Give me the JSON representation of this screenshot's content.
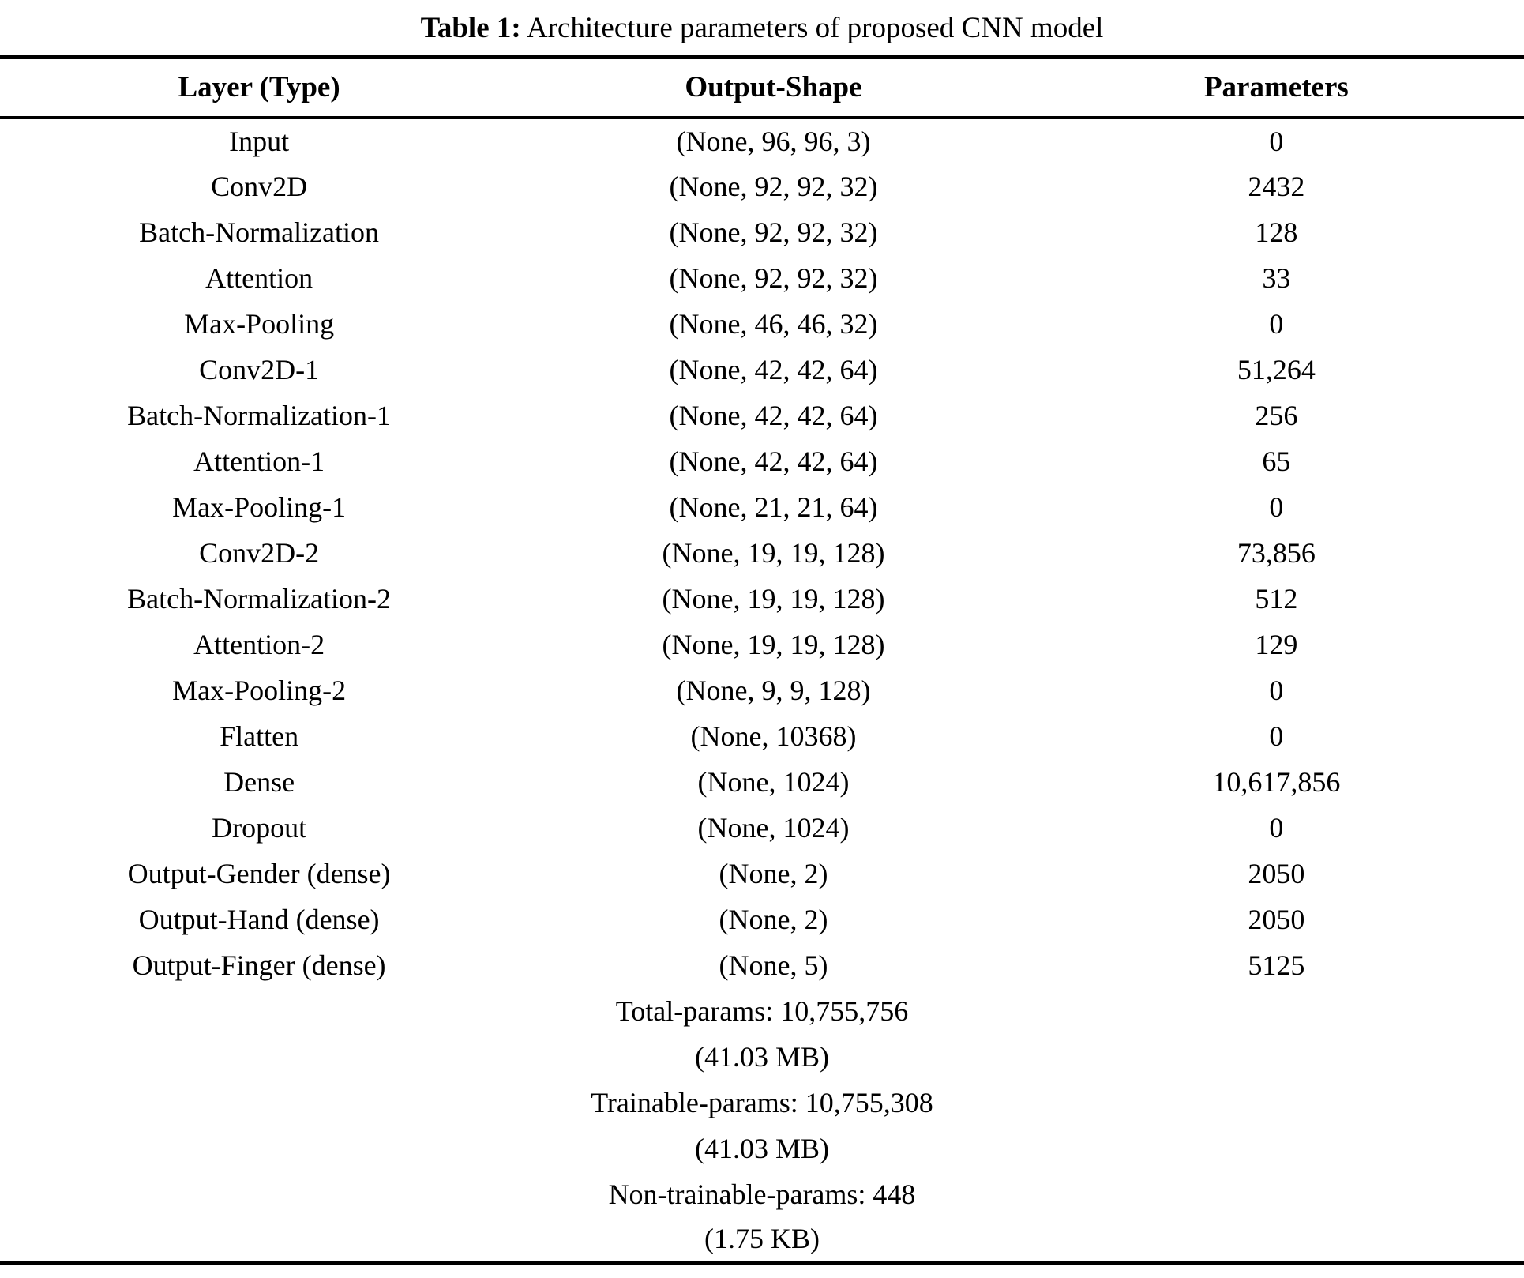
{
  "title": {
    "label": "Table 1:",
    "text": " Architecture parameters of proposed CNN model"
  },
  "table": {
    "columns": [
      "Layer (Type)",
      "Output-Shape",
      "Parameters"
    ],
    "rows": [
      {
        "layer": "Input",
        "output_shape": "(None, 96, 96, 3)",
        "parameters": "0"
      },
      {
        "layer": "Conv2D",
        "output_shape": "(None, 92, 92, 32)",
        "parameters": "2432"
      },
      {
        "layer": "Batch-Normalization",
        "output_shape": "(None, 92, 92, 32)",
        "parameters": "128"
      },
      {
        "layer": "Attention",
        "output_shape": "(None, 92, 92, 32)",
        "parameters": "33"
      },
      {
        "layer": "Max-Pooling",
        "output_shape": "(None, 46, 46, 32)",
        "parameters": "0"
      },
      {
        "layer": "Conv2D-1",
        "output_shape": "(None, 42, 42, 64)",
        "parameters": "51,264"
      },
      {
        "layer": "Batch-Normalization-1",
        "output_shape": "(None, 42, 42, 64)",
        "parameters": "256"
      },
      {
        "layer": "Attention-1",
        "output_shape": "(None, 42, 42, 64)",
        "parameters": "65"
      },
      {
        "layer": "Max-Pooling-1",
        "output_shape": "(None, 21, 21, 64)",
        "parameters": "0"
      },
      {
        "layer": "Conv2D-2",
        "output_shape": "(None, 19, 19, 128)",
        "parameters": "73,856"
      },
      {
        "layer": "Batch-Normalization-2",
        "output_shape": "(None, 19, 19, 128)",
        "parameters": "512"
      },
      {
        "layer": "Attention-2",
        "output_shape": "(None, 19, 19, 128)",
        "parameters": "129"
      },
      {
        "layer": "Max-Pooling-2",
        "output_shape": "(None, 9, 9, 128)",
        "parameters": "0"
      },
      {
        "layer": "Flatten",
        "output_shape": "(None, 10368)",
        "parameters": "0"
      },
      {
        "layer": "Dense",
        "output_shape": "(None, 1024)",
        "parameters": "10,617,856"
      },
      {
        "layer": "Dropout",
        "output_shape": "(None, 1024)",
        "parameters": "0"
      },
      {
        "layer": "Output-Gender (dense)",
        "output_shape": "(None, 2)",
        "parameters": "2050"
      },
      {
        "layer": "Output-Hand (dense)",
        "output_shape": "(None, 2)",
        "parameters": "2050"
      },
      {
        "layer": "Output-Finger (dense)",
        "output_shape": "(None, 5)",
        "parameters": "5125"
      }
    ],
    "footer_lines": [
      "Total-params: 10,755,756",
      "(41.03 MB)",
      "Trainable-params: 10,755,308",
      "(41.03 MB)",
      "Non-trainable-params: 448",
      "(1.75 KB)"
    ]
  },
  "colors": {
    "background": "#ffffff",
    "text": "#000000",
    "rule": "#000000"
  }
}
